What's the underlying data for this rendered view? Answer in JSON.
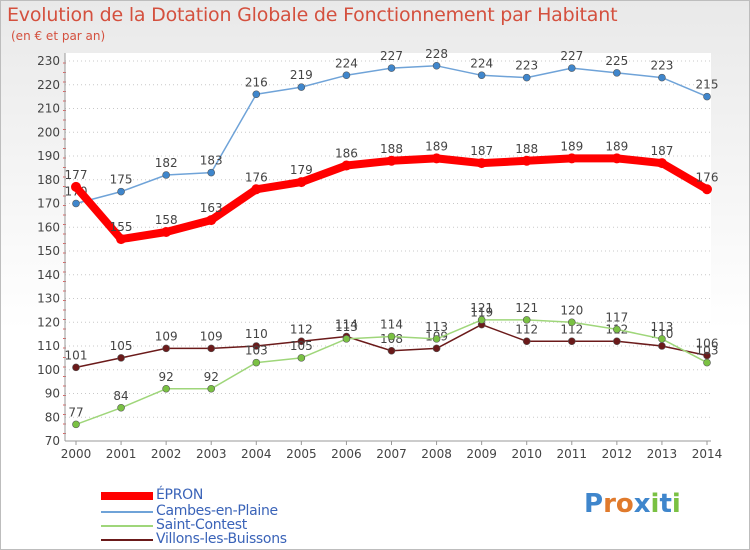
{
  "chart_data": {
    "type": "line",
    "title": "Evolution de la Dotation Globale de Fonctionnement par Habitant",
    "subtitle": "(en € et par an)",
    "x": [
      "2000",
      "2001",
      "2002",
      "2003",
      "2004",
      "2005",
      "2006",
      "2007",
      "2008",
      "2009",
      "2010",
      "2011",
      "2012",
      "2013",
      "2014"
    ],
    "yticks": [
      70,
      80,
      90,
      100,
      110,
      120,
      130,
      140,
      150,
      160,
      170,
      180,
      190,
      200,
      210,
      220,
      230
    ],
    "ylim": [
      70,
      230
    ],
    "grid": "horizontal-dotted",
    "legend_position": "bottom-left",
    "series": [
      {
        "name": "Villons-les-Buissons",
        "color": "#6b1a1a",
        "width": 1.5,
        "values": [
          101,
          105,
          109,
          109,
          110,
          112,
          114,
          108,
          109,
          119,
          112,
          112,
          112,
          110,
          106
        ]
      },
      {
        "name": "Saint-Contest",
        "color": "#9fd67a",
        "marker": "#7ac143",
        "width": 1.5,
        "values": [
          77,
          84,
          92,
          92,
          103,
          105,
          113,
          114,
          113,
          121,
          121,
          120,
          117,
          113,
          103
        ]
      },
      {
        "name": "Cambes-en-Plaine",
        "color": "#6fa3d8",
        "marker": "#3f86cc",
        "width": 1.5,
        "values": [
          170,
          175,
          182,
          183,
          216,
          219,
          224,
          227,
          228,
          224,
          223,
          227,
          225,
          223,
          215
        ]
      },
      {
        "name": "ÉPRON",
        "color": "#ff0000",
        "width": 8,
        "values": [
          177,
          155,
          158,
          163,
          176,
          179,
          186,
          188,
          189,
          187,
          188,
          189,
          189,
          187,
          176
        ]
      }
    ],
    "legend": [
      "ÉPRON",
      "Cambes-en-Plaine",
      "Saint-Contest",
      "Villons-les-Buissons"
    ]
  },
  "logo": {
    "letters": [
      {
        "ch": "P",
        "color": "#3f86cc"
      },
      {
        "ch": "r",
        "color": "#e07a2c"
      },
      {
        "ch": "o",
        "color": "#e07a2c"
      },
      {
        "ch": "x",
        "color": "#3f86cc"
      },
      {
        "ch": "i",
        "color": "#7ac143"
      },
      {
        "ch": "t",
        "color": "#3f86cc"
      },
      {
        "ch": "i",
        "color": "#7ac143"
      }
    ]
  }
}
